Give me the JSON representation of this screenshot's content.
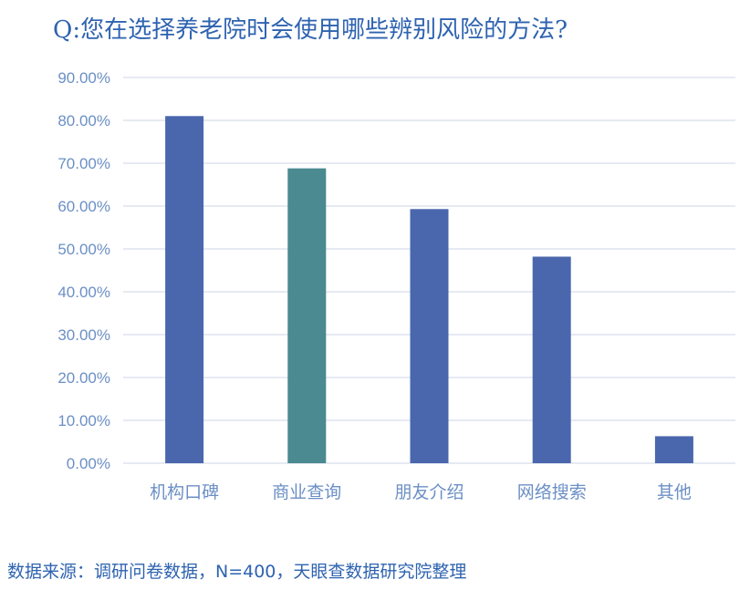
{
  "chart_data": {
    "type": "bar",
    "title": "Q:您在选择养老院时会使用哪些辨别风险的方法?",
    "categories": [
      "机构口碑",
      "商业查询",
      "朋友介绍",
      "网络搜索",
      "其他"
    ],
    "values": [
      81.0,
      68.8,
      59.3,
      48.2,
      6.3
    ],
    "ylim": [
      0,
      90
    ],
    "yticks": [
      0,
      10,
      20,
      30,
      40,
      50,
      60,
      70,
      80,
      90
    ],
    "ytick_labels": [
      "0.00%",
      "10.00%",
      "20.00%",
      "30.00%",
      "40.00%",
      "50.00%",
      "60.00%",
      "70.00%",
      "80.00%",
      "90.00%"
    ],
    "highlight_index": 1,
    "grid": true,
    "colors": {
      "bar": "#4a67ad",
      "highlight": "#4a8a90",
      "grid": "#dde4ee"
    }
  },
  "source": "数据来源：调研问卷数据，N=400，天眼查数据研究院整理"
}
